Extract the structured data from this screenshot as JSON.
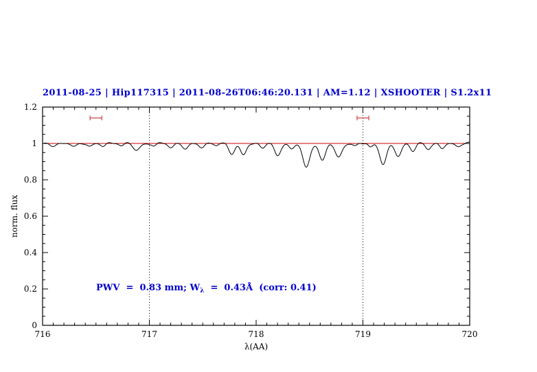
{
  "figure": {
    "background": "#ffffff",
    "frame_color": "#000000"
  },
  "chart_data": {
    "type": "line",
    "title": "2011-08-25 | Hip117315 | 2011-08-26T06:46:20.131 | AM=1.12 | XSHOOTER | S1.2x11",
    "title_color": "#0000cc",
    "xlabel": "λ(AA)",
    "ylabel": "norm. flux",
    "xlim": [
      716,
      720
    ],
    "ylim": [
      0,
      1.2
    ],
    "grid": "off",
    "legend": "none",
    "xticks": {
      "major": [
        716,
        717,
        718,
        719,
        720
      ],
      "labels": [
        "716",
        "717",
        "718",
        "719",
        "720"
      ],
      "minor_step": 0.1
    },
    "yticks": {
      "major": [
        0,
        0.2,
        0.4,
        0.6,
        0.8,
        1.0,
        1.2
      ],
      "labels": [
        "0",
        "0.2",
        "0.4",
        "0.6",
        "0.8",
        "1",
        "1.2"
      ],
      "minor_step": 0.05
    },
    "vlines": {
      "x": [
        717,
        719
      ],
      "style": "dotted",
      "color": "#000000"
    },
    "continuum": {
      "y": 1.0,
      "color": "#cc0000"
    },
    "range_markers": {
      "color": "#cc4444",
      "y": 1.14,
      "cap_half_height": 0.013,
      "items": [
        {
          "x_center": 716.5,
          "half_width": 0.055
        },
        {
          "x_center": 719.0,
          "half_width": 0.055
        }
      ]
    },
    "spectrum": {
      "color": "#000000",
      "continuum_level": 1.0,
      "sample_step": 0.004,
      "noise": [
        {
          "amp": 0.003,
          "freq": 41,
          "phase": 0
        },
        {
          "amp": 0.002,
          "freq": 23.7,
          "phase": 2
        },
        {
          "amp": 0.0015,
          "freq": 67,
          "phase": 5
        },
        {
          "amp": 0.002,
          "freq": 13.3,
          "phase": 0.7
        }
      ],
      "absorption_lines": [
        [
          716.1,
          0.013,
          0.03
        ],
        [
          716.3,
          0.02,
          0.028
        ],
        [
          716.44,
          0.012,
          0.022
        ],
        [
          716.57,
          0.014,
          0.022
        ],
        [
          716.74,
          0.012,
          0.022
        ],
        [
          716.88,
          0.038,
          0.03
        ],
        [
          717.05,
          0.012,
          0.02
        ],
        [
          717.2,
          0.024,
          0.026
        ],
        [
          717.34,
          0.03,
          0.026
        ],
        [
          717.49,
          0.018,
          0.024
        ],
        [
          717.63,
          0.014,
          0.022
        ],
        [
          717.77,
          0.055,
          0.028
        ],
        [
          717.88,
          0.062,
          0.028
        ],
        [
          718.06,
          0.022,
          0.024
        ],
        [
          718.2,
          0.072,
          0.028
        ],
        [
          718.33,
          0.028,
          0.024
        ],
        [
          718.47,
          0.135,
          0.032
        ],
        [
          718.62,
          0.095,
          0.03
        ],
        [
          718.77,
          0.078,
          0.03
        ],
        [
          718.93,
          0.015,
          0.02
        ],
        [
          719.07,
          0.022,
          0.02
        ],
        [
          719.19,
          0.115,
          0.032
        ],
        [
          719.33,
          0.068,
          0.028
        ],
        [
          719.47,
          0.042,
          0.026
        ],
        [
          719.61,
          0.032,
          0.024
        ],
        [
          719.74,
          0.026,
          0.024
        ],
        [
          719.89,
          0.016,
          0.022
        ]
      ]
    },
    "annotation": {
      "pre": "PWV  =  0.83 mm; W",
      "sub": "λ",
      "post": "  =  0.43Å  (corr: 0.41)",
      "color": "#0000cc",
      "x": 716.5,
      "y": 0.2
    }
  }
}
